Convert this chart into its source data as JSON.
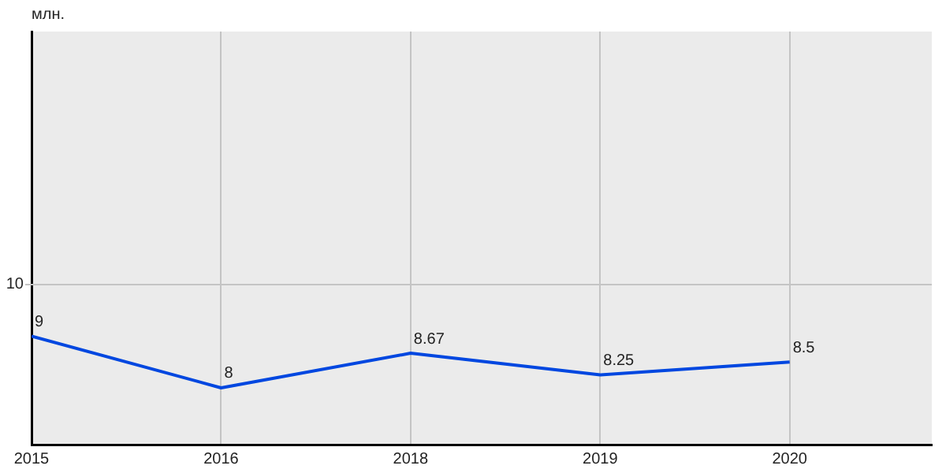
{
  "chart_data": {
    "type": "line",
    "ylabel": "млн.",
    "categories": [
      "2015",
      "2016",
      "2018",
      "2019",
      "2020"
    ],
    "series": [
      {
        "color": "#0047e0",
        "values": [
          9,
          8,
          8.67,
          8.25,
          8.5
        ]
      }
    ],
    "ylim": [
      6.9,
      14.9
    ],
    "ref_lines": [
      {
        "axis": "y",
        "value": 10,
        "label": "10",
        "color": "#c4c4c4"
      }
    ],
    "grid": "x",
    "legend": false,
    "marker": "none",
    "line_style": "solid",
    "data_labels": true
  }
}
